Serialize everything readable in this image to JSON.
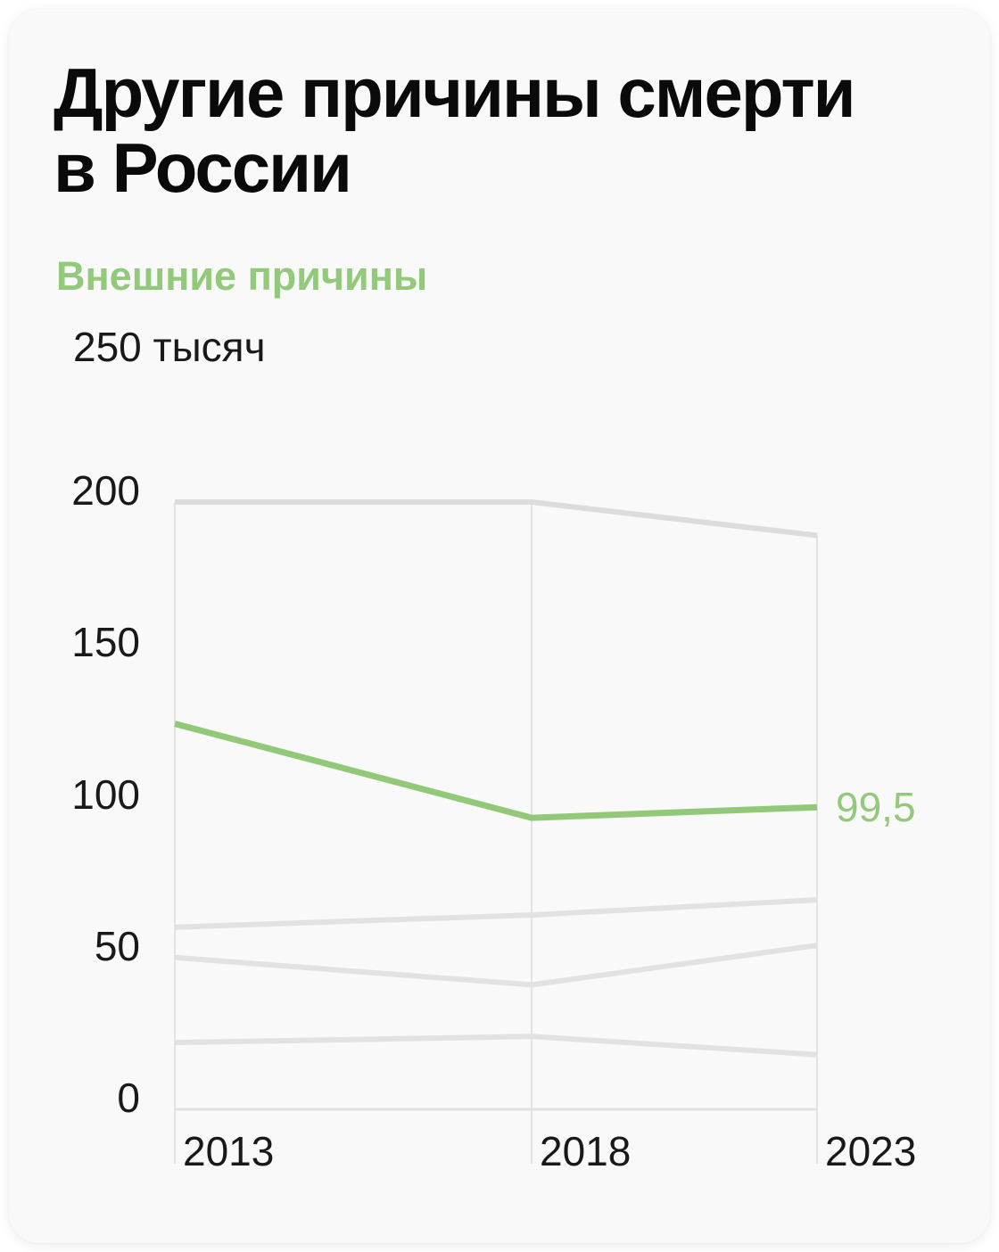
{
  "card": {
    "title": "Другие причины смерти\nв России",
    "subtitle": "Внешние причины"
  },
  "chart_data": {
    "type": "line",
    "title": "Другие причины смерти в России",
    "subtitle": "Внешние причины",
    "x": [
      2013,
      2018,
      2023
    ],
    "x_tick_labels": [
      "2013",
      "2018",
      "2023"
    ],
    "y_axis": {
      "min": 0,
      "max": 250,
      "ticks": [
        0,
        50,
        100,
        150,
        200
      ],
      "tick_labels": [
        "0",
        "50",
        "100",
        "150",
        "200"
      ],
      "top_label": "250 тысяч",
      "unit": "тысяч"
    },
    "grid": "vertical-only",
    "legend": "none",
    "series": [
      {
        "id": "unlabeled-top",
        "name": "",
        "highlighted": false,
        "color": "#dcdcdf",
        "values": [
          200,
          200,
          189
        ]
      },
      {
        "id": "unlabeled-2",
        "name": "",
        "highlighted": false,
        "color": "#e2e2e5",
        "values": [
          60,
          64,
          69
        ]
      },
      {
        "id": "unlabeled-3",
        "name": "",
        "highlighted": false,
        "color": "#e2e2e5",
        "values": [
          50,
          41,
          54
        ]
      },
      {
        "id": "unlabeled-4",
        "name": "",
        "highlighted": false,
        "color": "#e2e2e5",
        "values": [
          22,
          24,
          18
        ]
      },
      {
        "id": "external-causes",
        "name": "Внешние причины",
        "highlighted": true,
        "color": "#92c978",
        "values": [
          127,
          96,
          99.5
        ],
        "end_label": "99,5"
      }
    ]
  },
  "colors": {
    "accent_green": "#93c97b",
    "gray_line": "#e2e2e5",
    "gray_line_top": "#dcdcdf",
    "grid": "#e3e3e6",
    "axis": "#e1e1e4",
    "text": "#19191b",
    "title": "#0a0a0a",
    "card_bg": "#f9f9f9",
    "page_bg": "#ffffff"
  }
}
